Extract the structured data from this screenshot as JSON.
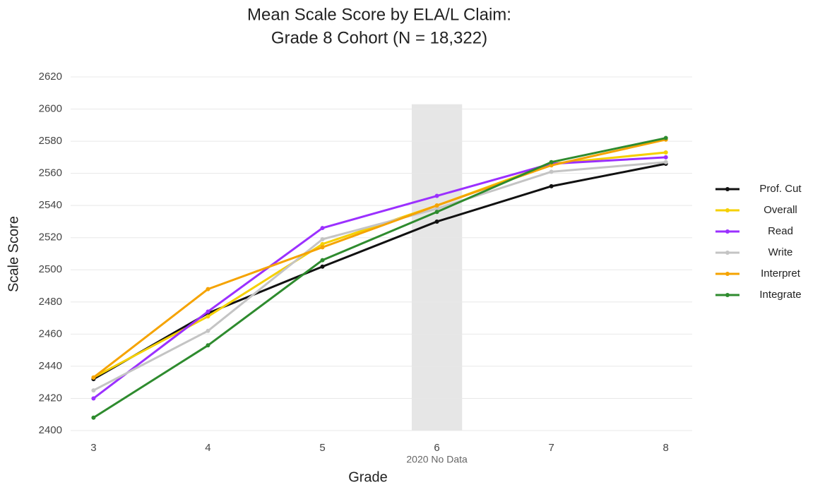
{
  "chart_data": {
    "type": "line",
    "title": [
      "Mean Scale Score by ELA/L Claim:",
      "Grade 8 Cohort (N = 18,322)"
    ],
    "x_label": "Grade",
    "y_label": "Scale Score",
    "x": [
      3,
      4,
      5,
      6,
      7,
      8
    ],
    "xlim": [
      2.8,
      8.23
    ],
    "xticks": [
      3,
      4,
      5,
      6,
      7,
      8
    ],
    "ylim": [
      2400,
      2620
    ],
    "yticks": [
      2400,
      2420,
      2440,
      2460,
      2480,
      2500,
      2520,
      2540,
      2560,
      2580,
      2600,
      2620
    ],
    "grid": true,
    "legend": "right",
    "shaded_region": {
      "x": [
        5.78,
        6.22
      ],
      "top": 2603,
      "label": "2020 No Data"
    },
    "series": [
      {
        "name": "Prof. Cut",
        "color": "#111111",
        "values": [
          2432,
          2473,
          2502,
          2530,
          2552,
          2566
        ]
      },
      {
        "name": "Overall",
        "color": "#f5d000",
        "values": [
          2433,
          2471,
          2516,
          2540,
          2566,
          2573
        ]
      },
      {
        "name": "Read",
        "color": "#9b30ff",
        "values": [
          2420,
          2474,
          2526,
          2546,
          2566,
          2570
        ]
      },
      {
        "name": "Write",
        "color": "#c4c4c4",
        "values": [
          2425,
          2462,
          2519,
          2538,
          2561,
          2567
        ]
      },
      {
        "name": "Interpret",
        "color": "#f5a300",
        "values": [
          2433,
          2488,
          2514,
          2540,
          2565,
          2581
        ]
      },
      {
        "name": "Integrate",
        "color": "#2e8b2e",
        "values": [
          2408,
          2453,
          2506,
          2536,
          2567,
          2582
        ]
      }
    ]
  }
}
